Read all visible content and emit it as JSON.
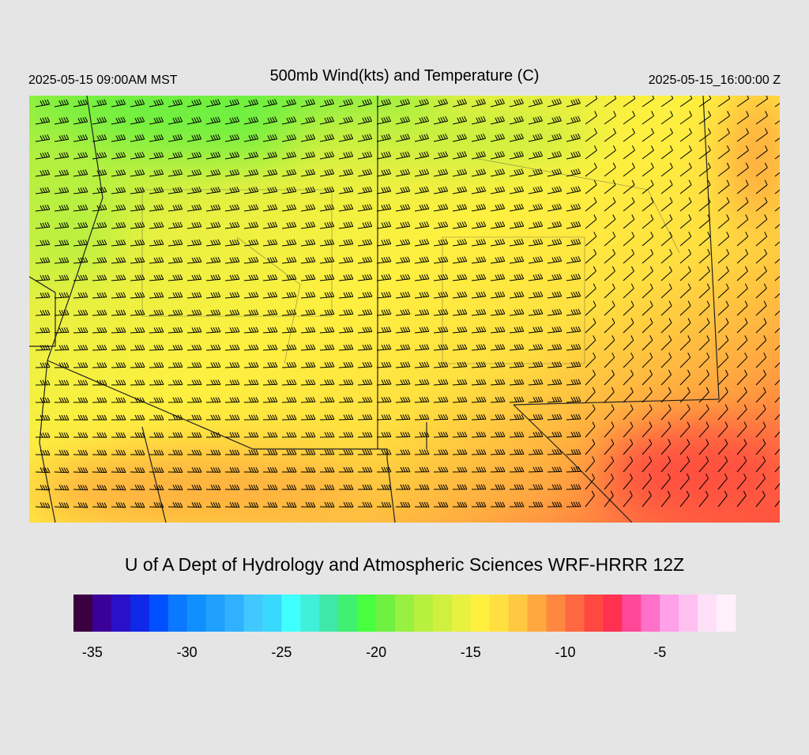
{
  "header": {
    "valid_local": "2025-05-15 09:00AM MST",
    "title": "500mb Wind(kts) and Temperature (C)",
    "valid_utc": "2025-05-15_16:00:00 Z"
  },
  "credit": "U of A Dept of Hydrology and Atmospheric Sciences WRF-HRRR 12Z",
  "colorbar": {
    "min": -36,
    "max": -1,
    "colors": [
      "#3a0040",
      "#3a0098",
      "#2a10c8",
      "#1028e8",
      "#0050ff",
      "#0a78ff",
      "#1090ff",
      "#20a0ff",
      "#30b0ff",
      "#40c8ff",
      "#38d8ff",
      "#40ffff",
      "#40f0d8",
      "#40e8a8",
      "#40f070",
      "#48ff40",
      "#70f040",
      "#98f040",
      "#b8f040",
      "#d0f040",
      "#e8f040",
      "#fff040",
      "#ffe040",
      "#ffc840",
      "#ffa840",
      "#ff8840",
      "#ff6840",
      "#ff4840",
      "#ff3050",
      "#ff4898",
      "#ff70c8",
      "#ffa0e8",
      "#ffc0f0",
      "#ffe0f8",
      "#fff0fc"
    ],
    "ticks": [
      -35,
      -30,
      -25,
      -20,
      -15,
      -10,
      -5
    ]
  }
}
